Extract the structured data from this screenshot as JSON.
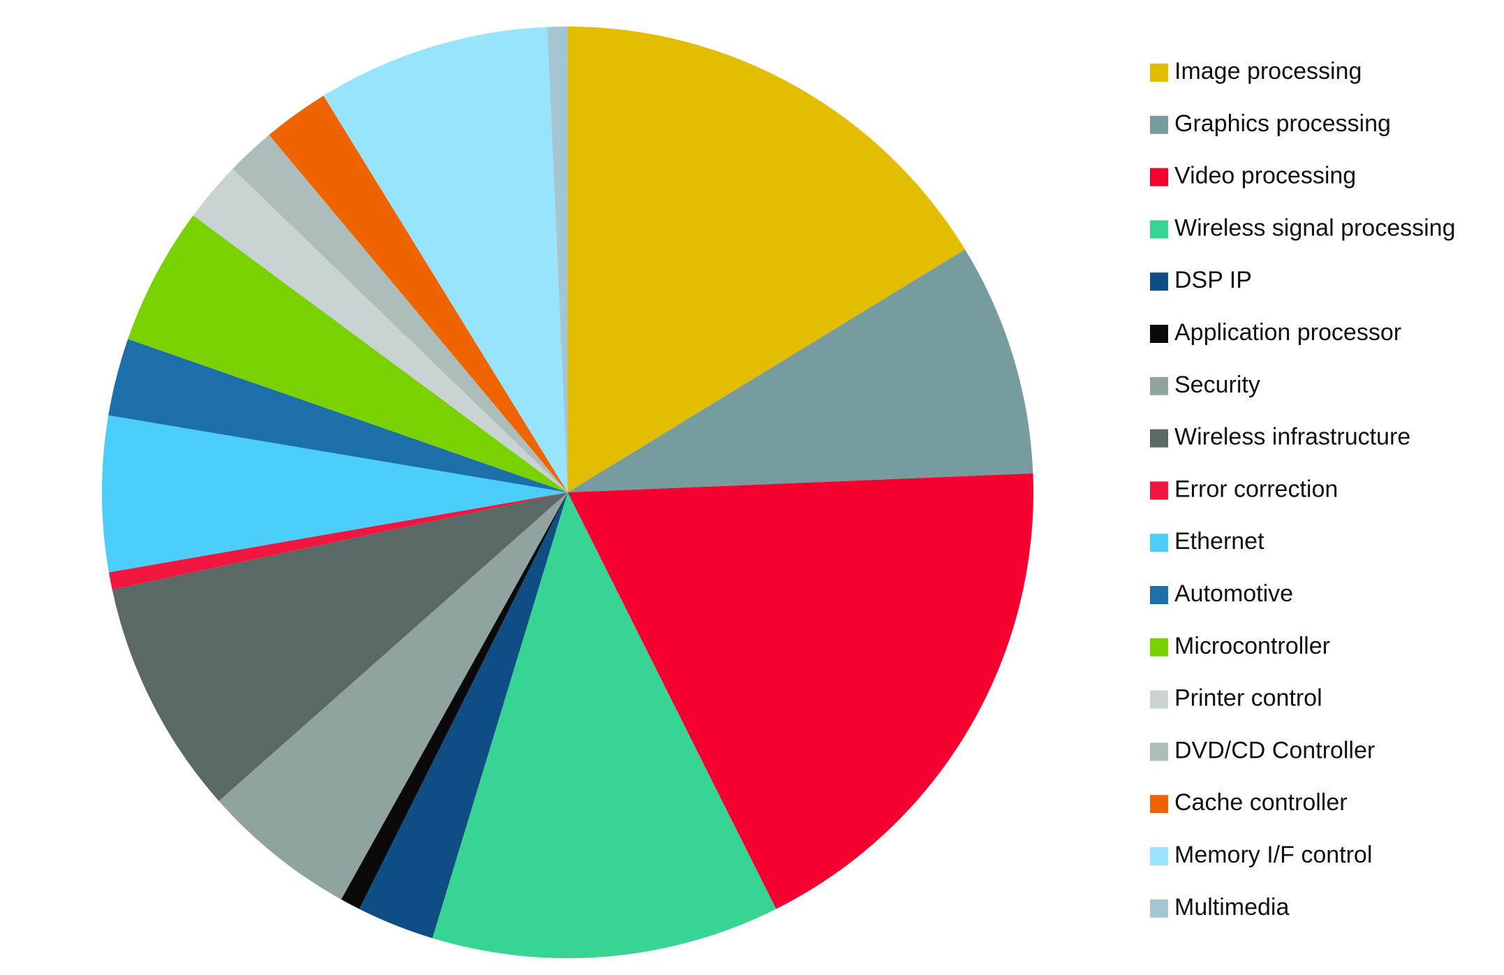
{
  "chart_data": {
    "type": "pie",
    "categories": [
      "Image processing",
      "Graphics processing",
      "Video processing",
      "Wireless signal processing",
      "DSP IP",
      "Application processor",
      "Security",
      "Wireless infrastructure",
      "Error correction",
      "Ethernet",
      "Automotive",
      "Microcontroller",
      "Printer control",
      "DVD/CD Controller",
      "Cache controller",
      "Memory I/F control",
      "Multimedia"
    ],
    "values": [
      16.3,
      8.1,
      18.3,
      12.1,
      2.7,
      0.7,
      5.4,
      8.2,
      0.6,
      5.4,
      2.7,
      4.8,
      2.1,
      1.7,
      2.3,
      8.1,
      0.7
    ],
    "colors": [
      "#e3bd00",
      "#769ca0",
      "#f5002f",
      "#38d494",
      "#0e4e85",
      "#0a0a0a",
      "#91a3a0",
      "#5a6866",
      "#f01640",
      "#4bcffa",
      "#1d6faa",
      "#79d100",
      "#c9d3d3",
      "#adbdbc",
      "#f06400",
      "#97e4fc",
      "#a4c6d2"
    ],
    "legend": "right"
  }
}
